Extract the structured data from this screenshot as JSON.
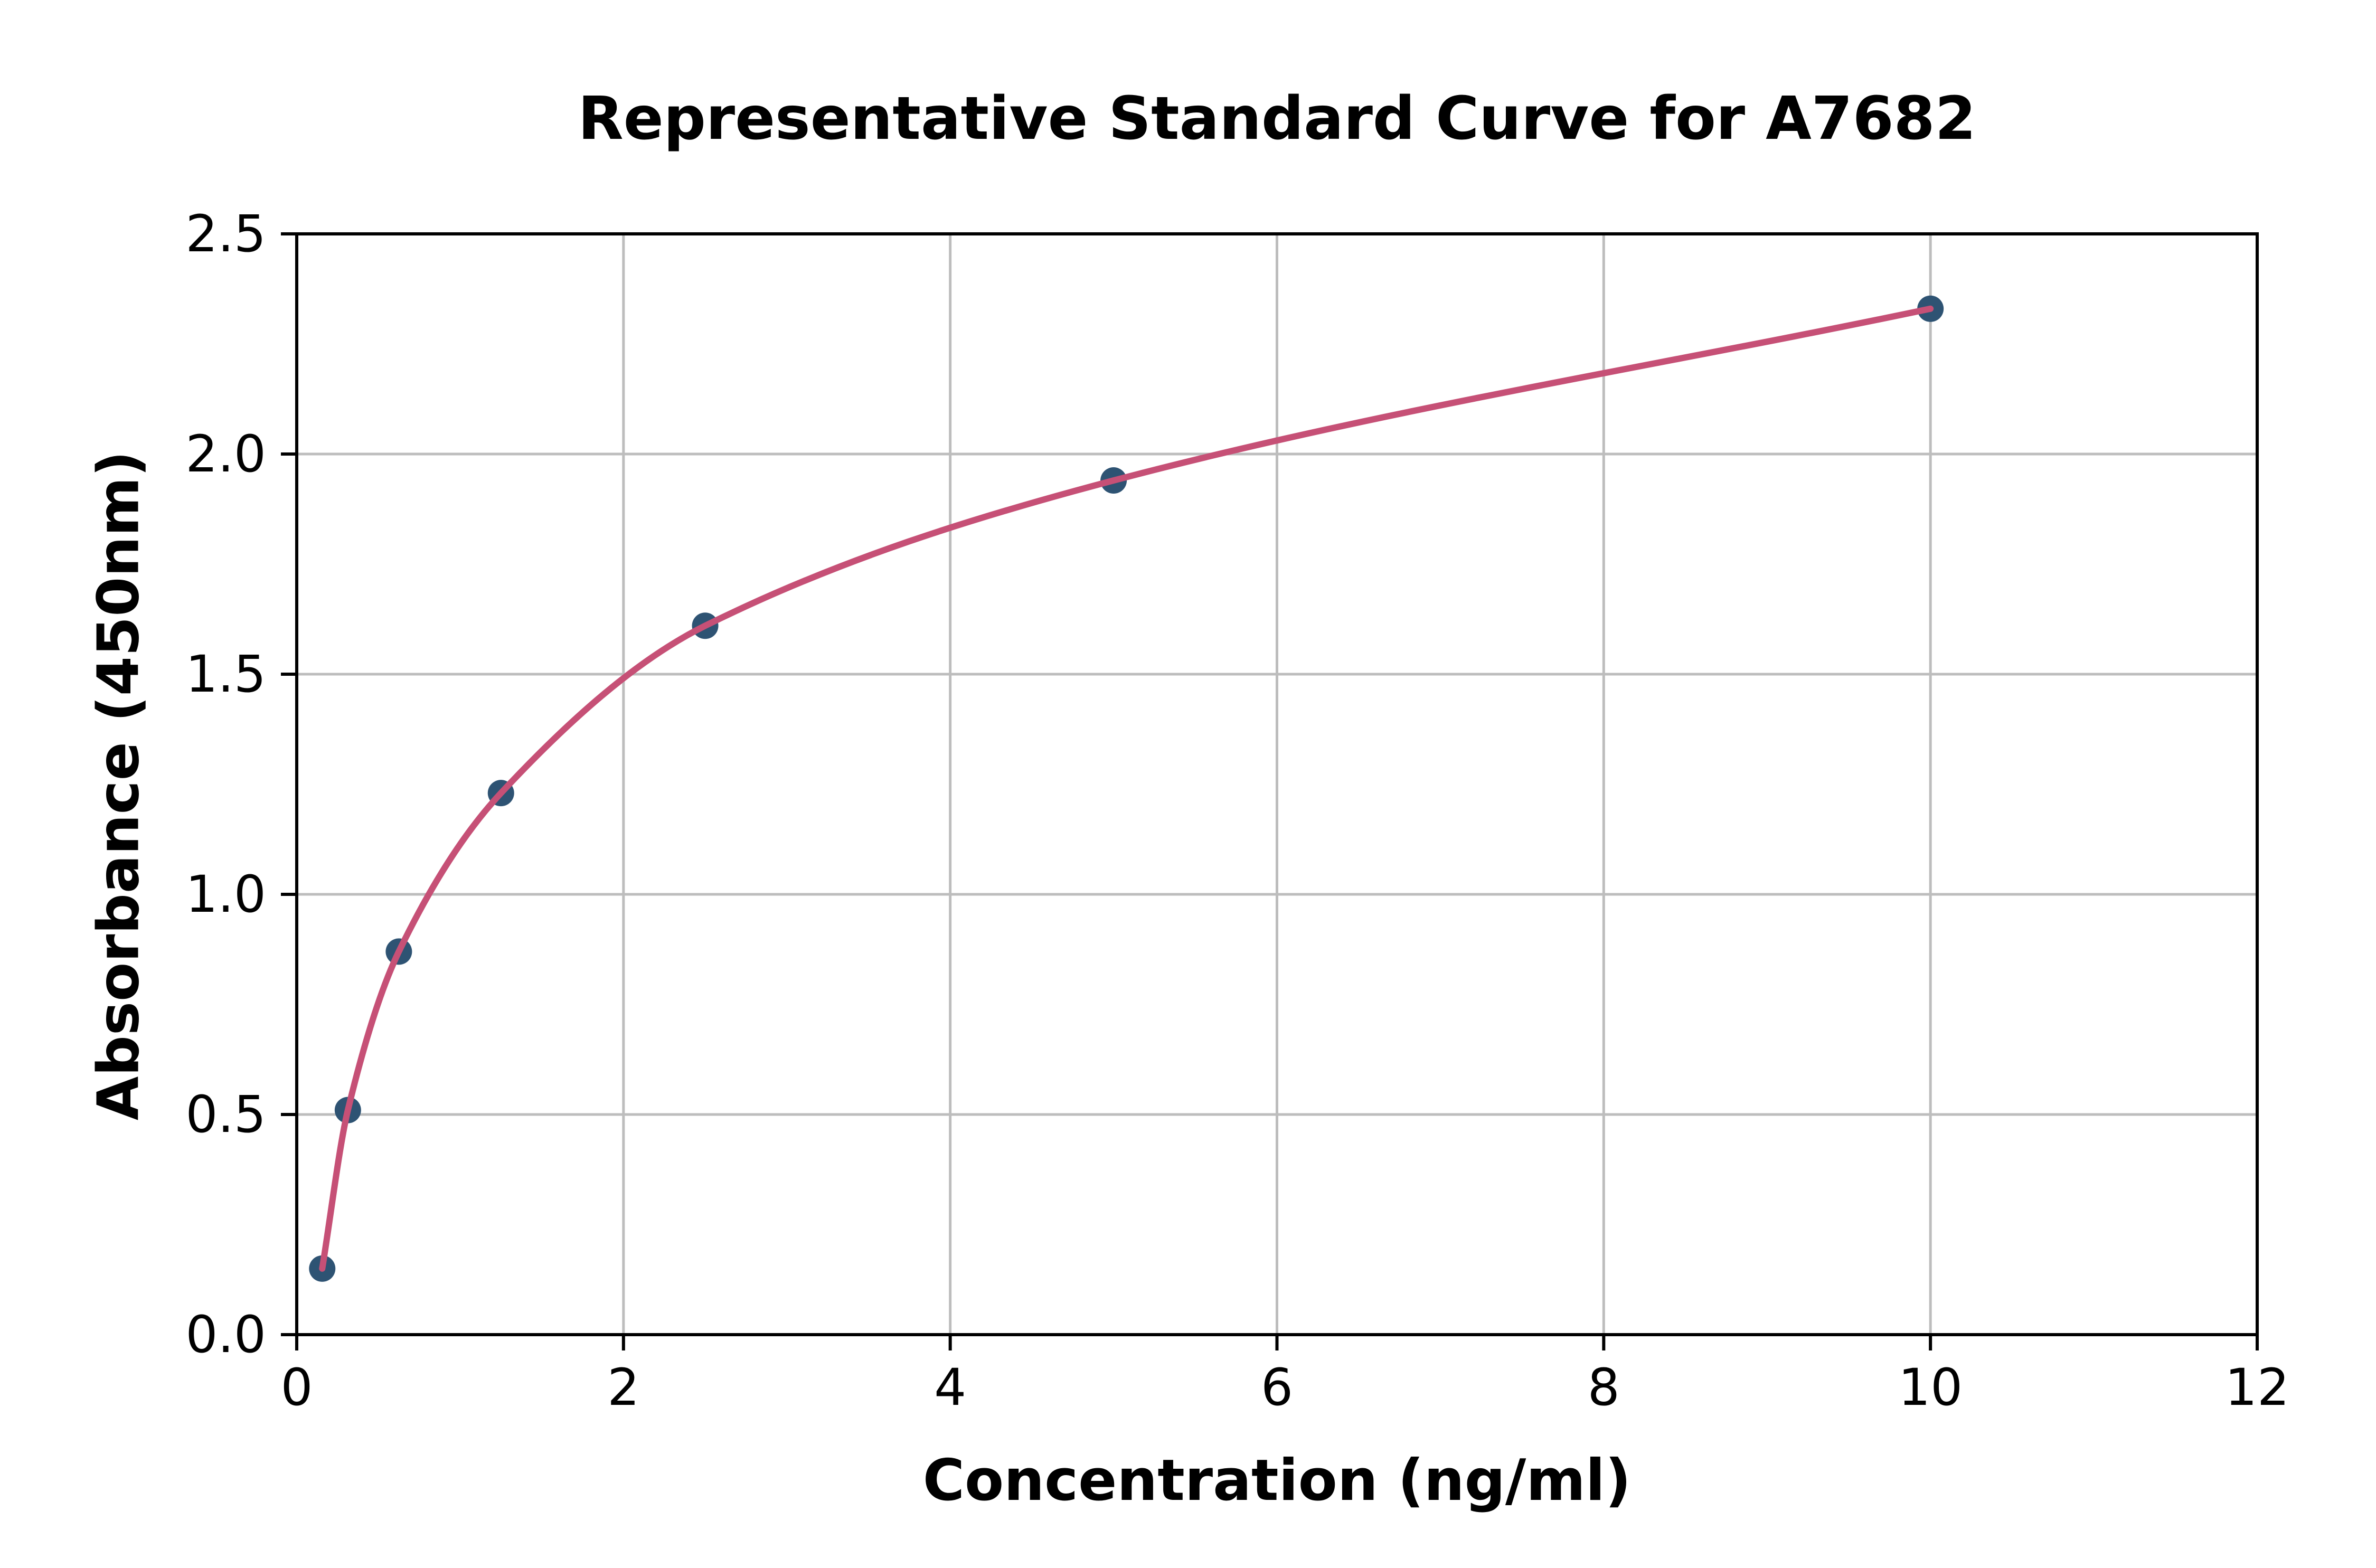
{
  "chart_data": {
    "type": "scatter",
    "title": "Representative Standard Curve for A7682",
    "xlabel": "Concentration (ng/ml)",
    "ylabel": "Absorbance (450nm)",
    "series": [
      {
        "name": "standard-curve",
        "x": [
          0.156,
          0.313,
          0.625,
          1.25,
          2.5,
          5,
          10
        ],
        "y": [
          0.15,
          0.51,
          0.87,
          1.23,
          1.61,
          1.94,
          2.33
        ]
      }
    ],
    "xlim": [
      0,
      12
    ],
    "ylim": [
      0,
      2.5
    ],
    "xticks": [
      0,
      2,
      4,
      6,
      8,
      10,
      12
    ],
    "xtick_labels": [
      "0",
      "2",
      "4",
      "6",
      "8",
      "10",
      "12"
    ],
    "yticks": [
      0,
      0.5,
      1.0,
      1.5,
      2.0,
      2.5
    ],
    "ytick_labels": [
      "0.0",
      "0.5",
      "1.0",
      "1.5",
      "2.0",
      "2.5"
    ],
    "grid": true,
    "legend": null,
    "curve_style": "smooth monotone curve through data points",
    "colors": {
      "curve": "#c65076",
      "marker": "#2e5373",
      "grid": "#bdbdbd",
      "spine": "#000000",
      "text": "#000000",
      "background": "#ffffff"
    }
  }
}
